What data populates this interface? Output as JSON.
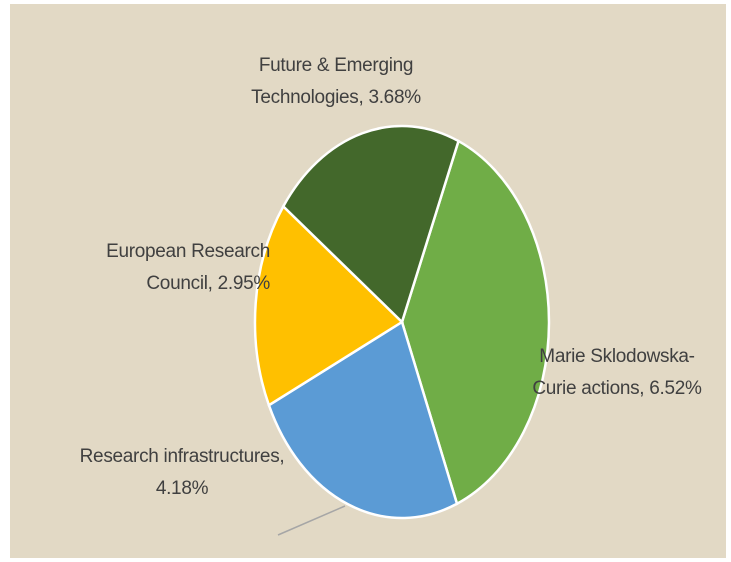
{
  "chart_data": {
    "type": "pie",
    "values": [
      6.52,
      4.18,
      2.95,
      3.68
    ],
    "value_labels": [
      "Marie Sklodowska-Curie actions, 6.52%",
      "Research infrastructures, 4.18%",
      "European Research Council, 2.95%",
      "Future & Emerging Technologies, 3.68%"
    ],
    "colors": [
      "#70ad47",
      "#5b9bd5",
      "#ffc000",
      "#43682b"
    ]
  }
}
